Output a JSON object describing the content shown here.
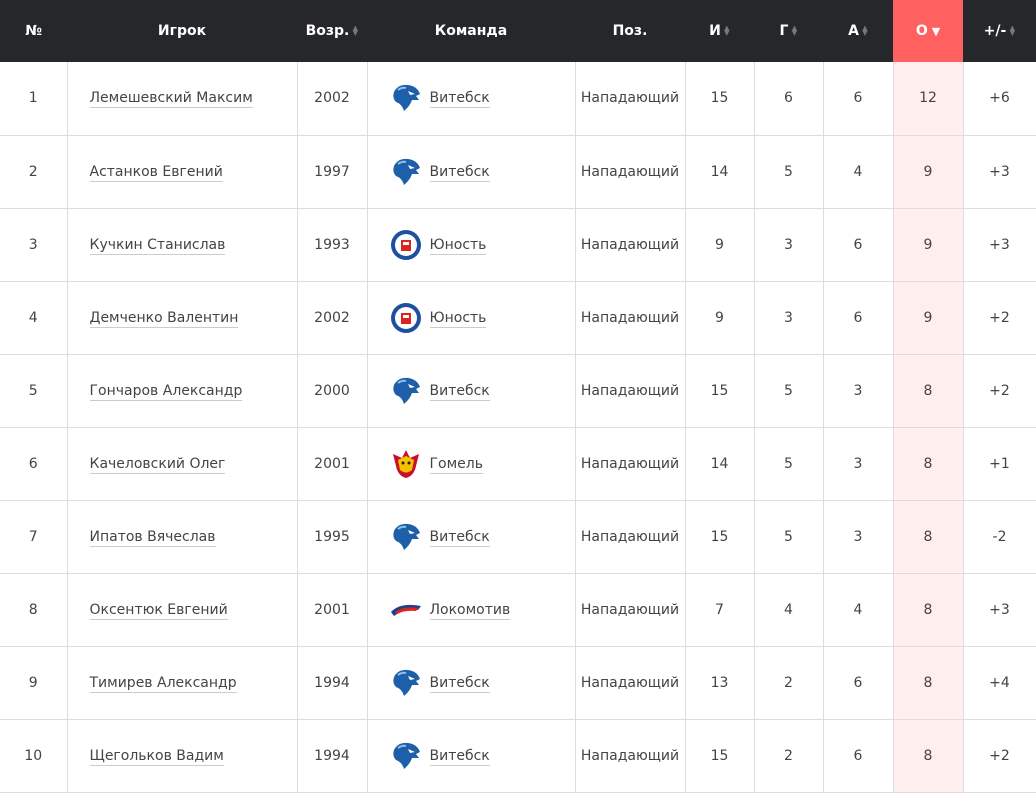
{
  "columns": [
    {
      "label": "№",
      "sortable": false
    },
    {
      "label": "Игрок",
      "sortable": false
    },
    {
      "label": "Возр.",
      "sortable": true
    },
    {
      "label": "Команда",
      "sortable": false
    },
    {
      "label": "Поз.",
      "sortable": false
    },
    {
      "label": "И",
      "sortable": true
    },
    {
      "label": "Г",
      "sortable": true
    },
    {
      "label": "А",
      "sortable": true
    },
    {
      "label": "О",
      "sortable": true,
      "sorted": "desc"
    },
    {
      "label": "+/-",
      "sortable": true
    }
  ],
  "colors": {
    "header": "#26272b",
    "sorted_header": "#ff6161",
    "sorted_cell": "#ffeeee"
  },
  "rows": [
    {
      "n": "1",
      "player": "Лемешевский Максим",
      "year": "2002",
      "team": "Витебск",
      "logo": "vitebsk",
      "pos": "Нападающий",
      "gp": "15",
      "g": "6",
      "a": "6",
      "pts": "12",
      "pm": "+6"
    },
    {
      "n": "2",
      "player": "Астанков Евгений",
      "year": "1997",
      "team": "Витебск",
      "logo": "vitebsk",
      "pos": "Нападающий",
      "gp": "14",
      "g": "5",
      "a": "4",
      "pts": "9",
      "pm": "+3"
    },
    {
      "n": "3",
      "player": "Кучкин Станислав",
      "year": "1993",
      "team": "Юность",
      "logo": "yunost",
      "pos": "Нападающий",
      "gp": "9",
      "g": "3",
      "a": "6",
      "pts": "9",
      "pm": "+3"
    },
    {
      "n": "4",
      "player": "Демченко Валентин",
      "year": "2002",
      "team": "Юность",
      "logo": "yunost",
      "pos": "Нападающий",
      "gp": "9",
      "g": "3",
      "a": "6",
      "pts": "9",
      "pm": "+2"
    },
    {
      "n": "5",
      "player": "Гончаров Александр",
      "year": "2000",
      "team": "Витебск",
      "logo": "vitebsk",
      "pos": "Нападающий",
      "gp": "15",
      "g": "5",
      "a": "3",
      "pts": "8",
      "pm": "+2"
    },
    {
      "n": "6",
      "player": "Качеловский Олег",
      "year": "2001",
      "team": "Гомель",
      "logo": "gomel",
      "pos": "Нападающий",
      "gp": "14",
      "g": "5",
      "a": "3",
      "pts": "8",
      "pm": "+1"
    },
    {
      "n": "7",
      "player": "Ипатов Вячеслав",
      "year": "1995",
      "team": "Витебск",
      "logo": "vitebsk",
      "pos": "Нападающий",
      "gp": "15",
      "g": "5",
      "a": "3",
      "pts": "8",
      "pm": "-2"
    },
    {
      "n": "8",
      "player": "Оксентюк Евгений",
      "year": "2001",
      "team": "Локомотив",
      "logo": "lokomotiv",
      "pos": "Нападающий",
      "gp": "7",
      "g": "4",
      "a": "4",
      "pts": "8",
      "pm": "+3"
    },
    {
      "n": "9",
      "player": "Тимирев Александр",
      "year": "1994",
      "team": "Витебск",
      "logo": "vitebsk",
      "pos": "Нападающий",
      "gp": "13",
      "g": "2",
      "a": "6",
      "pts": "8",
      "pm": "+4"
    },
    {
      "n": "10",
      "player": "Щегольков Вадим",
      "year": "1994",
      "team": "Витебск",
      "logo": "vitebsk",
      "pos": "Нападающий",
      "gp": "15",
      "g": "2",
      "a": "6",
      "pts": "8",
      "pm": "+2"
    }
  ]
}
